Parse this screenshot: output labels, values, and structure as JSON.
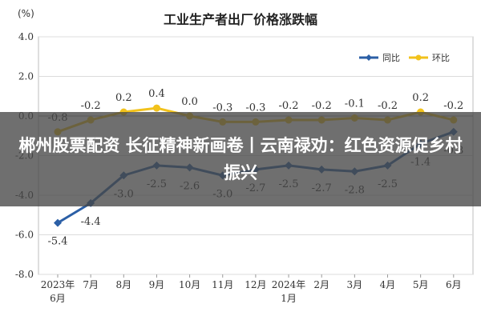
{
  "chart_data": {
    "type": "line",
    "title": "工业生产者出厂价格涨跌幅",
    "ylabel": "(%)",
    "xlabel": "",
    "ylim": [
      -8.0,
      4.0
    ],
    "yticks": [
      "4.0",
      "2.0",
      "0.0",
      "-2.0",
      "-4.0",
      "-6.0",
      "-8.0"
    ],
    "categories": [
      {
        "line1": "2023年",
        "line2": "6月"
      },
      {
        "line1": "7月",
        "line2": ""
      },
      {
        "line1": "8月",
        "line2": ""
      },
      {
        "line1": "9月",
        "line2": ""
      },
      {
        "line1": "10月",
        "line2": ""
      },
      {
        "line1": "11月",
        "line2": ""
      },
      {
        "line1": "12月",
        "line2": ""
      },
      {
        "line1": "2024年",
        "line2": "1月"
      },
      {
        "line1": "2月",
        "line2": ""
      },
      {
        "line1": "3月",
        "line2": ""
      },
      {
        "line1": "4月",
        "line2": ""
      },
      {
        "line1": "5月",
        "line2": ""
      },
      {
        "line1": "6月",
        "line2": ""
      }
    ],
    "series": [
      {
        "name": "同比",
        "color": "#2b5fa6",
        "values": [
          -5.4,
          -4.4,
          -3.0,
          -2.5,
          -2.6,
          -3.0,
          -2.7,
          -2.5,
          -2.7,
          -2.8,
          -2.5,
          -1.4,
          -0.8
        ],
        "labels": [
          "-5.4",
          "-4.4",
          "-3.0",
          "-2.5",
          "-2.6",
          "-3.0",
          "-2.7",
          "-2.5",
          "-2.7",
          "-2.8",
          "-2.5",
          "-1.4",
          "-0.8"
        ]
      },
      {
        "name": "环比",
        "color": "#f2c21b",
        "values": [
          -0.8,
          -0.2,
          0.2,
          0.4,
          0.0,
          -0.3,
          -0.3,
          -0.2,
          -0.2,
          -0.1,
          -0.2,
          0.2,
          -0.2
        ],
        "labels": [
          "-0.8",
          "-0.2",
          "0.2",
          "0.4",
          "0.0",
          "-0.3",
          "-0.3",
          "-0.2",
          "-0.2",
          "-0.1",
          "-0.2",
          "0.2",
          "-0.2"
        ]
      }
    ],
    "grid": true,
    "legend_position": "top-right"
  },
  "overlay": {
    "text": "郴州股票配资 长征精神新画卷丨云南禄劝：红色资源促乡村振兴",
    "background": "#464646"
  }
}
